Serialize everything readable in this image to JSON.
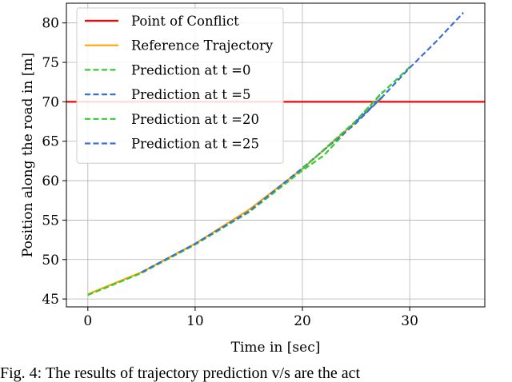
{
  "chart_data": {
    "type": "line",
    "title": "",
    "xlabel": "Time in [sec]",
    "ylabel": "Position along the road in [m]",
    "xlim": [
      -2,
      37
    ],
    "ylim": [
      44,
      82.5
    ],
    "xticks": [
      0,
      10,
      20,
      30
    ],
    "yticks": [
      45,
      50,
      55,
      60,
      65,
      70,
      75,
      80
    ],
    "grid": true,
    "legend_position": "top-left",
    "point_of_conflict": 70,
    "series": [
      {
        "name": "Point of Conflict",
        "color": "#ff0000",
        "style": "solid",
        "x": [
          -2,
          37
        ],
        "y": [
          70,
          70
        ]
      },
      {
        "name": "Reference Trajectory",
        "color": "#ffa500",
        "style": "solid",
        "x": [
          0,
          5,
          10,
          15,
          20,
          25,
          27.5
        ],
        "y": [
          45.6,
          48.4,
          52.0,
          56.3,
          61.5,
          67.5,
          70.6
        ]
      },
      {
        "name": "Prediction at t =0",
        "color": "#33cc33",
        "style": "dashed",
        "x": [
          0,
          5,
          10,
          15,
          20,
          22,
          25,
          27.5
        ],
        "y": [
          45.5,
          48.3,
          51.9,
          56.0,
          61.3,
          63.2,
          67.6,
          71.3
        ]
      },
      {
        "name": "Prediction at t =5",
        "color": "#3d6fd9",
        "style": "dashed",
        "x": [
          5,
          10,
          15,
          20,
          25,
          27.5
        ],
        "y": [
          48.4,
          52.0,
          56.1,
          61.6,
          67.3,
          70.7
        ]
      },
      {
        "name": "Prediction at t =20",
        "color": "#33cc33",
        "style": "dashed",
        "x": [
          20,
          25,
          27.5,
          30
        ],
        "y": [
          61.5,
          67.6,
          71.2,
          74.4
        ]
      },
      {
        "name": "Prediction at t =25",
        "color": "#3d6fd9",
        "style": "dashed",
        "x": [
          25,
          27.5,
          30,
          32.5,
          35
        ],
        "y": [
          67.5,
          70.7,
          74.3,
          77.7,
          81.3
        ]
      }
    ]
  },
  "caption": "Fig. 4: The results of trajectory prediction v/s are the act"
}
